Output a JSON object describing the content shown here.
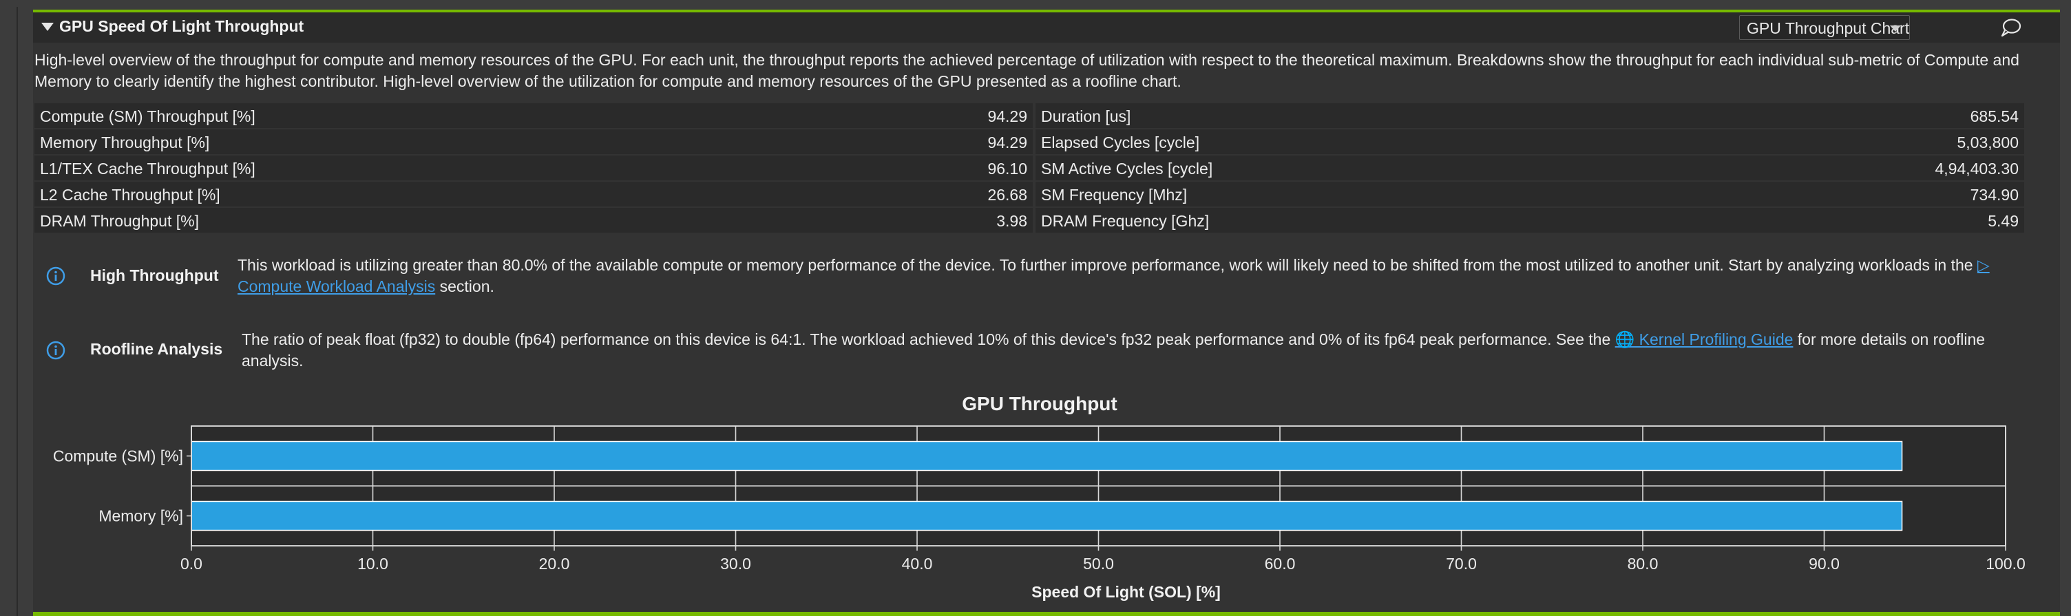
{
  "section": {
    "title": "GPU Speed Of Light Throughput",
    "chart_selector": "GPU Throughput Chart",
    "description": "High-level overview of the throughput for compute and memory resources of the GPU. For each unit, the throughput reports the achieved percentage of utilization with respect to the theoretical maximum. Breakdowns show the throughput for each individual sub-metric of Compute and Memory to clearly identify the highest contributor. High-level overview of the utilization for compute and memory resources of the GPU presented as a roofline chart."
  },
  "metrics": {
    "left": [
      {
        "label": "Compute (SM) Throughput [%]",
        "value": "94.29"
      },
      {
        "label": "Memory Throughput [%]",
        "value": "94.29"
      },
      {
        "label": "L1/TEX Cache Throughput [%]",
        "value": "96.10"
      },
      {
        "label": "L2 Cache Throughput [%]",
        "value": "26.68"
      },
      {
        "label": "DRAM Throughput [%]",
        "value": "3.98"
      }
    ],
    "right": [
      {
        "label": "Duration [us]",
        "value": "685.54"
      },
      {
        "label": "Elapsed Cycles [cycle]",
        "value": "5,03,800"
      },
      {
        "label": "SM Active Cycles [cycle]",
        "value": "4,94,403.30"
      },
      {
        "label": "SM Frequency [Mhz]",
        "value": "734.90"
      },
      {
        "label": "DRAM Frequency [Ghz]",
        "value": "5.49"
      }
    ]
  },
  "recommendations": [
    {
      "icon": "info-icon",
      "title": "High Throughput",
      "text_before": "This workload is utilizing greater than 80.0% of the available compute or memory performance of the device. To further improve performance, work will likely need to be shifted from the most utilized to another unit. Start by analyzing workloads in the ",
      "link": "▷ Compute Workload Analysis",
      "text_after": " section."
    },
    {
      "icon": "info-icon",
      "title": "Roofline Analysis",
      "text_before": "The ratio of peak float (fp32) to double (fp64) performance on this device is 64:1. The workload achieved 10% of this device's fp32 peak performance and 0% of its fp64 peak performance. See the ",
      "link": "🌐 Kernel Profiling Guide",
      "text_after": " for more details on roofline analysis."
    }
  ],
  "colors": {
    "accent": "#76b900",
    "bar": "#29a0e0",
    "link": "#3f9ee8"
  },
  "chart_data": {
    "type": "bar",
    "orientation": "horizontal",
    "title": "GPU Throughput",
    "xlabel": "Speed Of Light (SOL) [%]",
    "ylabel": "",
    "categories": [
      "Compute (SM) [%]",
      "Memory [%]"
    ],
    "values": [
      94.29,
      94.29
    ],
    "xlim": [
      0,
      100
    ],
    "xticks": [
      "0.0",
      "10.0",
      "20.0",
      "30.0",
      "40.0",
      "50.0",
      "60.0",
      "70.0",
      "80.0",
      "90.0",
      "100.0"
    ],
    "grid": true
  }
}
